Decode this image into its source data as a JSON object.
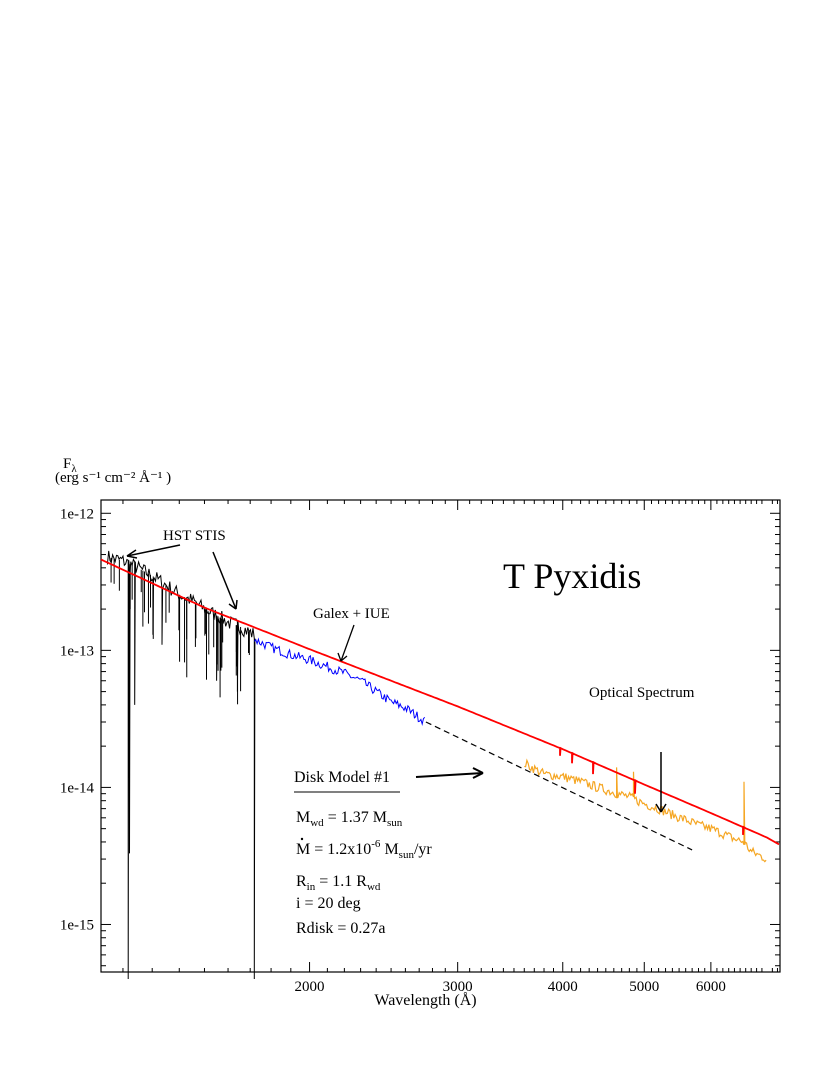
{
  "chart_data": {
    "type": "line",
    "title": "T Pyxidis",
    "xlabel": "Wavelength (Å)",
    "ylabel": {
      "main": "F",
      "sub": "λ",
      "units": "(erg s⁻¹ cm⁻² Å⁻¹ )"
    },
    "x_scale": "log",
    "y_scale": "log",
    "xlim": [
      1130,
      7250
    ],
    "ylim": [
      4.5e-16,
      1.25e-12
    ],
    "x_ticks": [
      2000,
      3000,
      4000,
      5000,
      6000
    ],
    "x_tick_labels": [
      "2000",
      "3000",
      "4000",
      "5000",
      "6000"
    ],
    "y_ticks": [
      1e-15,
      1e-14,
      1e-13,
      1e-12
    ],
    "y_tick_labels": [
      "1e-15",
      "1e-14",
      "1e-13",
      "1e-12"
    ],
    "grid": false,
    "series": [
      {
        "name": "HST STIS",
        "color": "#000000",
        "x_range": [
          1150,
          1720
        ],
        "x": [
          1150,
          1200,
          1250,
          1300,
          1350,
          1400,
          1450,
          1500,
          1550,
          1600,
          1650,
          1700,
          1720
        ],
        "y": [
          4.8e-13,
          4.5e-13,
          4e-13,
          3.5e-13,
          3e-13,
          2.55e-13,
          2.3e-13,
          2e-13,
          1.8e-13,
          1.6e-13,
          1.5e-13,
          1.35e-13,
          1.3e-13
        ],
        "absorption_lines": [
          {
            "x": 1216,
            "y": 4e-16
          },
          {
            "x": 1223,
            "y": 3.3e-15
          },
          {
            "x": 1240,
            "y": 4e-14
          },
          {
            "x": 1303,
            "y": 1.3e-13
          },
          {
            "x": 1335,
            "y": 1.1e-13
          },
          {
            "x": 1400,
            "y": 1.4e-13
          },
          {
            "x": 1550,
            "y": 6e-14
          },
          {
            "x": 1640,
            "y": 5e-14
          },
          {
            "x": 1720,
            "y": 4e-16
          }
        ]
      },
      {
        "name": "Galex + IUE",
        "color": "#0000ff",
        "x": [
          1720,
          1800,
          1900,
          2000,
          2100,
          2200,
          2300,
          2400,
          2500,
          2600,
          2750
        ],
        "y": [
          1.2e-13,
          1.05e-13,
          9.3e-14,
          8.5e-14,
          7.6e-14,
          6.8e-14,
          6e-14,
          5e-14,
          4.2e-14,
          3.8e-14,
          3e-14
        ]
      },
      {
        "name": "Optical Spectrum",
        "color": "#f5a623",
        "x": [
          3600,
          3800,
          4000,
          4200,
          4400,
          4600,
          4800,
          5000,
          5200,
          5400,
          5600,
          5800,
          6000,
          6200,
          6400,
          6563,
          6700,
          7000
        ],
        "y": [
          1.5e-14,
          1.25e-14,
          1.2e-14,
          1.1e-14,
          1e-14,
          9.2e-15,
          8.5e-15,
          7.6e-15,
          7e-15,
          6.3e-15,
          5.8e-15,
          5.3e-15,
          5e-15,
          4.6e-15,
          4.2e-15,
          4e-15,
          3.4e-15,
          3e-15
        ],
        "emission_lines": [
          {
            "x": 4640,
            "y": 1.4e-14
          },
          {
            "x": 4861,
            "y": 1.3e-14
          },
          {
            "x": 6563,
            "y": 1.1e-14
          }
        ]
      },
      {
        "name": "Disk Model #1",
        "color": "#ff0000",
        "x": [
          1130,
          1500,
          2000,
          2500,
          3000,
          4000,
          5000,
          6000,
          7000,
          7250
        ],
        "y": [
          4.6e-13,
          2.05e-13,
          1.02e-13,
          6e-14,
          3.9e-14,
          1.9e-14,
          1.05e-14,
          6.5e-15,
          4.3e-15,
          3.8e-15
        ],
        "absorption_lines": [
          {
            "x": 3970,
            "y": 1.7e-14
          },
          {
            "x": 4101,
            "y": 1.5e-14
          },
          {
            "x": 4340,
            "y": 1.25e-14
          },
          {
            "x": 4861,
            "y": 9e-15
          },
          {
            "x": 6563,
            "y": 4.5e-15
          }
        ]
      },
      {
        "color": "#000000",
        "dash": true,
        "x": [
          2750,
          5700
        ],
        "y": [
          3e-14,
          3.5e-15
        ]
      }
    ],
    "annotations": {
      "hst_label": "HST STIS",
      "galex_label": "Galex + IUE",
      "optical_label": "Optical Spectrum",
      "model_label": "Disk Model #1",
      "params": [
        {
          "base": "M",
          "sub": "wd",
          "rest": " = 1.37 M",
          "sub2": "sun",
          "tail": ""
        },
        {
          "base": "M",
          "dot": true,
          "rest": " = 1.2x10",
          "sup": "-6",
          "rest2": " M",
          "sub2": "sun",
          "tail": "/yr"
        },
        {
          "base": "R",
          "sub": "in",
          "rest": " = 1.1 R",
          "sub2": "wd",
          "tail": ""
        },
        {
          "text": " i = 20 deg"
        },
        {
          "text": " Rdisk = 0.27a"
        }
      ]
    }
  }
}
